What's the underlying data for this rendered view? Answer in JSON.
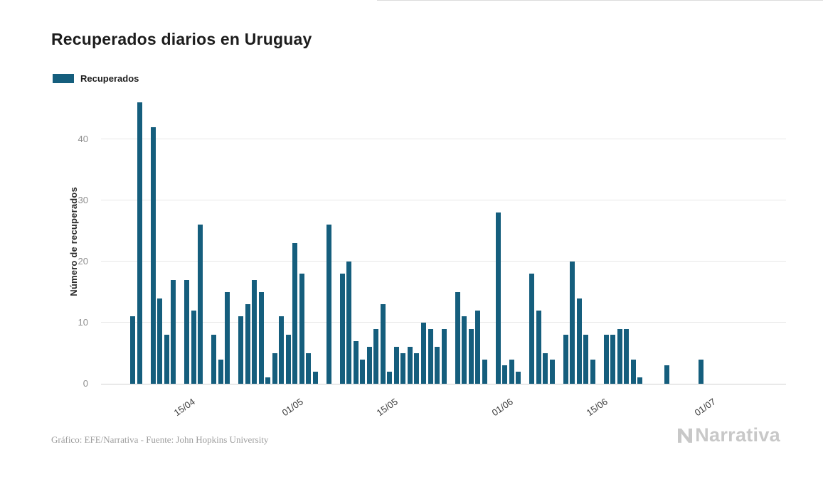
{
  "legend": {
    "items": [
      "Recuperados"
    ]
  },
  "footer": {
    "credit": "Gráfico: EFE/Narrativa - Fuente: John Hopkins University",
    "brand": "Narrativa"
  },
  "chart_data": {
    "type": "bar",
    "title": "Recuperados diarios en Uruguay",
    "xlabel": "",
    "ylabel": "Número de recuperados",
    "legend": [
      "Recuperados"
    ],
    "legend_position": "top-left",
    "grid": true,
    "ylim": [
      0,
      46.5
    ],
    "yticks": [
      0,
      10,
      20,
      30,
      40
    ],
    "x_tick_labels": [
      "15/04",
      "01/05",
      "15/05",
      "01/06",
      "15/06",
      "01/07"
    ],
    "x_tick_indices": [
      9,
      25,
      39,
      56,
      70,
      86
    ],
    "bar_color": "#155E7D",
    "values": [
      11,
      46,
      0,
      42,
      14,
      8,
      17,
      0,
      17,
      12,
      26,
      0,
      8,
      4,
      15,
      0,
      11,
      13,
      17,
      15,
      1,
      5,
      11,
      8,
      23,
      18,
      5,
      2,
      0,
      26,
      0,
      18,
      20,
      7,
      4,
      6,
      9,
      13,
      2,
      6,
      5,
      6,
      5,
      10,
      9,
      6,
      9,
      0,
      15,
      11,
      9,
      12,
      4,
      0,
      28,
      3,
      4,
      2,
      0,
      18,
      12,
      5,
      4,
      0,
      8,
      20,
      14,
      8,
      4,
      0,
      8,
      8,
      9,
      9,
      4,
      1,
      0,
      0,
      0,
      3,
      0,
      0,
      0,
      0,
      4,
      0,
      0
    ]
  }
}
